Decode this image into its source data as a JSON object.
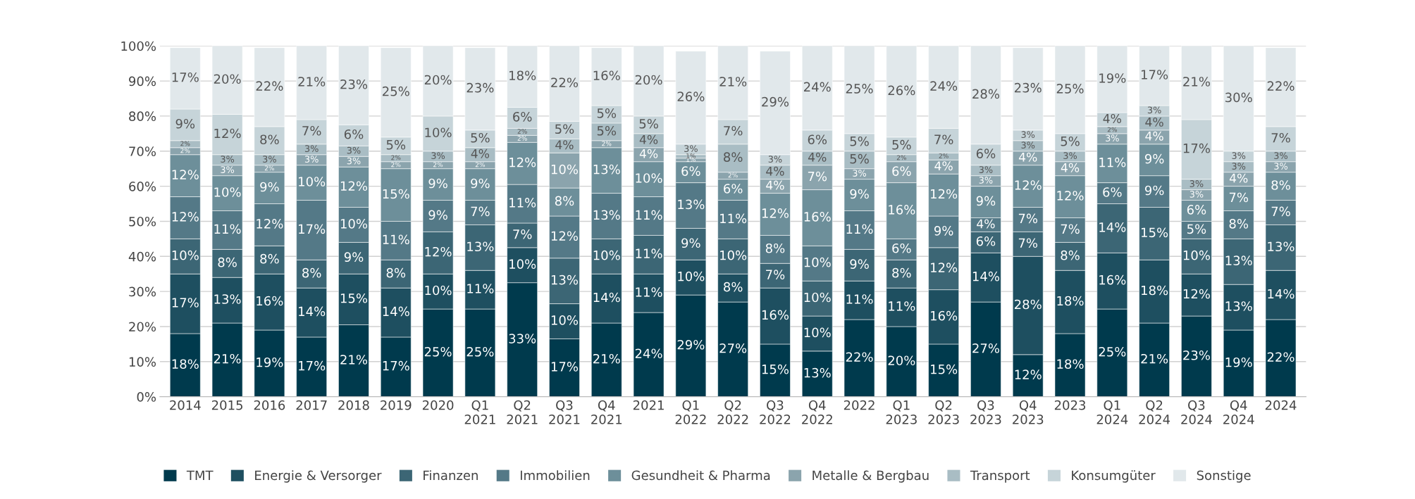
{
  "chart_data": {
    "type": "bar",
    "stacked": true,
    "data_labels": true,
    "grid": "y",
    "legend": "bottom",
    "categories": [
      "2014",
      "2015",
      "2016",
      "2017",
      "2018",
      "2019",
      "2020",
      "Q1\n2021",
      "Q2\n2021",
      "Q3\n2021",
      "Q4\n2021",
      "2021",
      "Q1\n2022",
      "Q2\n2022",
      "Q3\n2022",
      "Q4\n2022",
      "2022",
      "Q1\n2023",
      "Q2\n2023",
      "Q3\n2023",
      "Q4\n2023",
      "2023",
      "Q1\n2024",
      "Q2\n2024",
      "Q3\n2024",
      "Q4\n2024",
      "2024"
    ],
    "ylim": [
      0,
      100
    ],
    "yticks": [
      {
        "value": 0,
        "label": "0%"
      },
      {
        "value": 10,
        "label": "10%"
      },
      {
        "value": 20,
        "label": "20%"
      },
      {
        "value": 30,
        "label": "30%"
      },
      {
        "value": 40,
        "label": "40%"
      },
      {
        "value": 50,
        "label": "50%"
      },
      {
        "value": 60,
        "label": "60%"
      },
      {
        "value": 70,
        "label": "70%"
      },
      {
        "value": 80,
        "label": "80%"
      },
      {
        "value": 90,
        "label": "90%"
      },
      {
        "value": 100,
        "label": "100%"
      }
    ],
    "series": [
      {
        "name": "TMT",
        "color": "#003a4d",
        "values": [
          18,
          21,
          19,
          17,
          20.5,
          17,
          25,
          25,
          32.5,
          16.5,
          21,
          24,
          29,
          27,
          15,
          13,
          22,
          20,
          15,
          27,
          12,
          18,
          25,
          21,
          23,
          19,
          22
        ],
        "value_labels": [
          "18%",
          "21%",
          "19%",
          "17%",
          "21%",
          "17%",
          "25%",
          "25%",
          "33%",
          "17%",
          "21%",
          "24%",
          "29%",
          "27%",
          "15%",
          "13%",
          "22%",
          "20%",
          "15%",
          "27%",
          "12%",
          "18%",
          "25%",
          "21%",
          "23%",
          "19%",
          "22%"
        ]
      },
      {
        "name": "Energie & Versorger",
        "color": "#1e4f60",
        "values": [
          17,
          13,
          16,
          14,
          14.5,
          14,
          10,
          11,
          10,
          10,
          14,
          11,
          10,
          8,
          16,
          10,
          11,
          11,
          15.5,
          14,
          28,
          18,
          16,
          18,
          12,
          13,
          14
        ],
        "value_labels": [
          "17%",
          "13%",
          "16%",
          "14%",
          "15%",
          "14%",
          "10%",
          "11%",
          "10%",
          "10%",
          "14%",
          "11%",
          "10%",
          "8%",
          "16%",
          "10%",
          "11%",
          "11%",
          "16%",
          "14%",
          "28%",
          "18%",
          "16%",
          "18%",
          "12%",
          "13%",
          "14%"
        ]
      },
      {
        "name": "Finanzen",
        "color": "#3c6675",
        "values": [
          10,
          8,
          8,
          8,
          9,
          8,
          12,
          13,
          7,
          13,
          10,
          11,
          9,
          10,
          7,
          10,
          9,
          8,
          12,
          6,
          7,
          8,
          14,
          15,
          10,
          13,
          13
        ],
        "value_labels": [
          "10%",
          "8%",
          "8%",
          "8%",
          "9%",
          "8%",
          "12%",
          "13%",
          "7%",
          "13%",
          "10%",
          "11%",
          "9%",
          "10%",
          "7%",
          "10%",
          "9%",
          "8%",
          "12%",
          "6%",
          "7%",
          "8%",
          "14%",
          "15%",
          "10%",
          "13%",
          "13%"
        ]
      },
      {
        "name": "Immobilien",
        "color": "#547987",
        "values": [
          12,
          11,
          12,
          17,
          10,
          11,
          9,
          7,
          11,
          12,
          13,
          11,
          13,
          11,
          8,
          10,
          11,
          6,
          9,
          4,
          7,
          7,
          6,
          9,
          5,
          8,
          7
        ],
        "value_labels": [
          "12%",
          "11%",
          "12%",
          "17%",
          "10%",
          "11%",
          "9%",
          "7%",
          "11%",
          "12%",
          "13%",
          "11%",
          "13%",
          "11%",
          "8%",
          "10%",
          "11%",
          "6%",
          "9%",
          "4%",
          "7%",
          "7%",
          "6%",
          "9%",
          "5%",
          "8%",
          "7%"
        ]
      },
      {
        "name": "Gesundheit & Pharma",
        "color": "#6d8f9a",
        "values": [
          12,
          10,
          9,
          10,
          11.5,
          15,
          9,
          9,
          12,
          8,
          13,
          10,
          6,
          6,
          12,
          16,
          9,
          16,
          12,
          9,
          12,
          12,
          11,
          9,
          6,
          7,
          8
        ],
        "value_labels": [
          "12%",
          "10%",
          "9%",
          "10%",
          "12%",
          "15%",
          "9%",
          "9%",
          "12%",
          "8%",
          "13%",
          "10%",
          "6%",
          "6%",
          "12%",
          "16%",
          "9%",
          "16%",
          "12%",
          "9%",
          "12%",
          "12%",
          "11%",
          "9%",
          "6%",
          "7%",
          "8%"
        ]
      },
      {
        "name": "Metalle & Bergbau",
        "color": "#8ba4ad",
        "values": [
          2,
          3,
          2,
          3,
          3,
          2,
          2,
          2,
          2,
          10,
          2,
          4,
          1,
          2,
          4,
          7,
          3,
          6,
          4,
          3,
          4,
          4,
          3,
          4,
          3,
          4,
          3
        ],
        "value_labels": [
          "2%",
          "3%",
          "2%",
          "3%",
          "3%",
          "2%",
          "2%",
          "2%",
          "2%",
          "10%",
          "2%",
          "4%",
          "1%",
          "2%",
          "4%",
          "7%",
          "3%",
          "6%",
          "4%",
          "3%",
          "4%",
          "4%",
          "3%",
          "4%",
          "3%",
          "4%",
          "3%"
        ]
      },
      {
        "name": "Transport",
        "color": "#a9bdc4",
        "values": [
          2,
          3,
          3,
          3,
          3,
          2,
          3,
          4,
          2,
          4,
          5,
          4,
          1,
          8,
          4,
          4,
          5,
          2,
          2,
          3,
          3,
          3,
          2,
          4,
          3,
          3,
          3
        ],
        "value_labels": [
          "2%",
          "3%",
          "3%",
          "3%",
          "3%",
          "2%",
          "3%",
          "4%",
          "2%",
          "4%",
          "5%",
          "4%",
          "1%",
          "8%",
          "4%",
          "4%",
          "5%",
          "2%",
          "2%",
          "3%",
          "3%",
          "3%",
          "2%",
          "4%",
          "3%",
          "3%",
          "3%"
        ]
      },
      {
        "name": "Konsumgüter",
        "color": "#c6d4d9",
        "values": [
          9,
          11.5,
          8,
          7,
          6,
          5,
          10,
          5,
          6,
          5,
          5,
          5,
          3,
          7,
          3,
          6,
          5,
          5,
          7,
          6,
          3,
          5,
          4,
          3,
          17,
          3,
          7
        ],
        "value_labels": [
          "9%",
          "12%",
          "8%",
          "7%",
          "6%",
          "5%",
          "10%",
          "5%",
          "6%",
          "5%",
          "5%",
          "5%",
          "3%",
          "7%",
          "3%",
          "6%",
          "5%",
          "5%",
          "7%",
          "6%",
          "3%",
          "5%",
          "4%",
          "3%",
          "17%",
          "3%",
          "7%"
        ]
      },
      {
        "name": "Sonstige",
        "color": "#e1e8eb",
        "values": [
          17.5,
          19.5,
          22.5,
          21,
          22.5,
          25.5,
          20,
          23.5,
          17.5,
          21.5,
          16.5,
          20,
          26.5,
          21,
          29.5,
          24,
          25,
          26,
          23.5,
          28,
          23.5,
          25,
          19,
          17,
          21,
          30,
          22.5
        ],
        "value_labels": [
          "17%",
          "20%",
          "22%",
          "21%",
          "23%",
          "25%",
          "20%",
          "23%",
          "18%",
          "22%",
          "16%",
          "20%",
          "26%",
          "21%",
          "29%",
          "24%",
          "25%",
          "26%",
          "24%",
          "28%",
          "23%",
          "25%",
          "19%",
          "17%",
          "21%",
          "30%",
          "22%"
        ]
      }
    ]
  }
}
